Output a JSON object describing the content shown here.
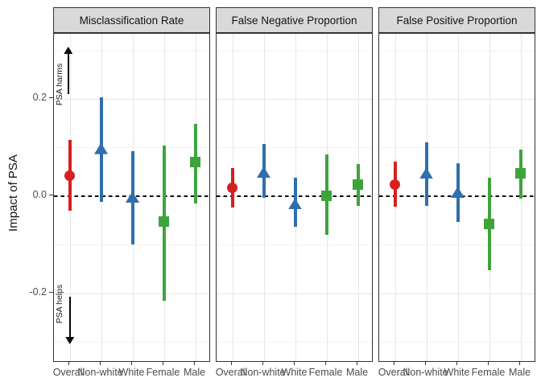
{
  "chart_data": {
    "type": "pointrange-faceted",
    "ylabel": "Impact of PSA",
    "ylim": [
      -0.343,
      0.334
    ],
    "yticks": [
      {
        "label": "0.2",
        "value": 0.2
      },
      {
        "label": "0.0",
        "value": 0.0
      },
      {
        "label": "-0.2",
        "value": -0.2
      }
    ],
    "minor_gridlines": [
      0.3,
      0.1,
      -0.1,
      -0.3
    ],
    "zero_line": 0,
    "grid": true,
    "legend": "none",
    "categories": [
      "Overall",
      "Non-white",
      "White",
      "Female",
      "Male"
    ],
    "category_styles": [
      {
        "shape": "circle",
        "color": "#d7201e"
      },
      {
        "shape": "triangle",
        "color": "#2e6fad"
      },
      {
        "shape": "triangle",
        "color": "#2e6fad"
      },
      {
        "shape": "square",
        "color": "#3da43c"
      },
      {
        "shape": "square",
        "color": "#3da43c"
      }
    ],
    "panels": [
      {
        "title": "Misclassification Rate",
        "points": [
          {
            "category": "Overall",
            "estimate": 0.042,
            "ci_low": -0.031,
            "ci_high": 0.116
          },
          {
            "category": "Non-white",
            "estimate": 0.098,
            "ci_low": -0.012,
            "ci_high": 0.203
          },
          {
            "category": "White",
            "estimate": -0.002,
            "ci_low": -0.1,
            "ci_high": 0.093
          },
          {
            "category": "Female",
            "estimate": -0.053,
            "ci_low": -0.215,
            "ci_high": 0.104
          },
          {
            "category": "Male",
            "estimate": 0.07,
            "ci_low": -0.015,
            "ci_high": 0.149
          }
        ]
      },
      {
        "title": "False Negative Proportion",
        "points": [
          {
            "category": "Overall",
            "estimate": 0.017,
            "ci_low": -0.023,
            "ci_high": 0.057
          },
          {
            "category": "Non-white",
            "estimate": 0.049,
            "ci_low": -0.003,
            "ci_high": 0.107
          },
          {
            "category": "White",
            "estimate": -0.016,
            "ci_low": -0.063,
            "ci_high": 0.038
          },
          {
            "category": "Female",
            "estimate": 0.001,
            "ci_low": -0.08,
            "ci_high": 0.085
          },
          {
            "category": "Male",
            "estimate": 0.023,
            "ci_low": -0.02,
            "ci_high": 0.066
          }
        ]
      },
      {
        "title": "False Positive Proportion",
        "points": [
          {
            "category": "Overall",
            "estimate": 0.024,
            "ci_low": -0.022,
            "ci_high": 0.07
          },
          {
            "category": "Non-white",
            "estimate": 0.047,
            "ci_low": -0.021,
            "ci_high": 0.11
          },
          {
            "category": "White",
            "estimate": 0.008,
            "ci_low": -0.053,
            "ci_high": 0.067
          },
          {
            "category": "Female",
            "estimate": -0.057,
            "ci_low": -0.152,
            "ci_high": 0.038
          },
          {
            "category": "Male",
            "estimate": 0.047,
            "ci_low": -0.005,
            "ci_high": 0.096
          }
        ]
      }
    ],
    "annotations": [
      {
        "text": "PSA harms",
        "arrow": "up"
      },
      {
        "text": "PSA helps",
        "arrow": "down"
      }
    ]
  }
}
